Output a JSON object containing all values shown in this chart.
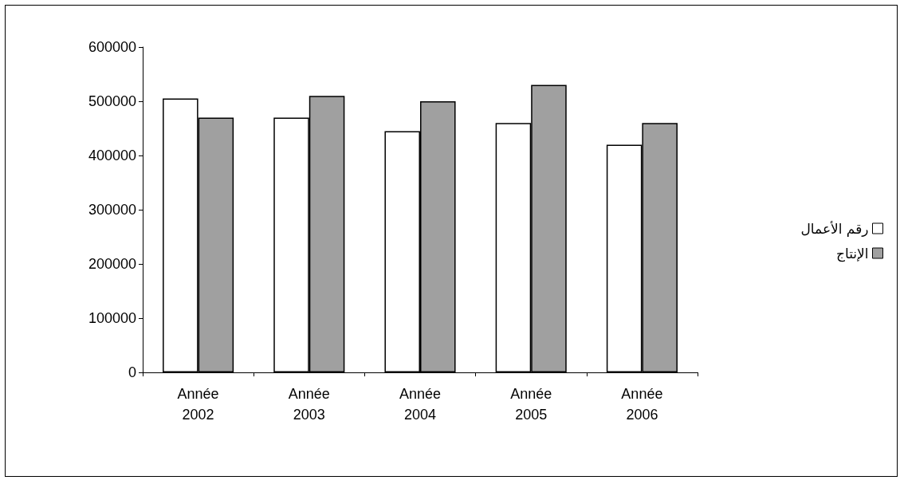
{
  "chart_data": {
    "type": "bar",
    "categories": [
      "Année\n2002",
      "Année\n2003",
      "Année\n2004",
      "Année\n2005",
      "Année\n2006"
    ],
    "series": [
      {
        "name": "رقم الأعمال",
        "color": "#ffffff",
        "values": [
          505000,
          470000,
          445000,
          460000,
          420000
        ]
      },
      {
        "name": "الإنتاج",
        "color": "#a0a0a0",
        "values": [
          470000,
          510000,
          500000,
          530000,
          460000
        ]
      }
    ],
    "ylim": [
      0,
      600000
    ],
    "yticks": [
      0,
      100000,
      200000,
      300000,
      400000,
      500000,
      600000
    ],
    "grid": false,
    "legend": "right"
  }
}
